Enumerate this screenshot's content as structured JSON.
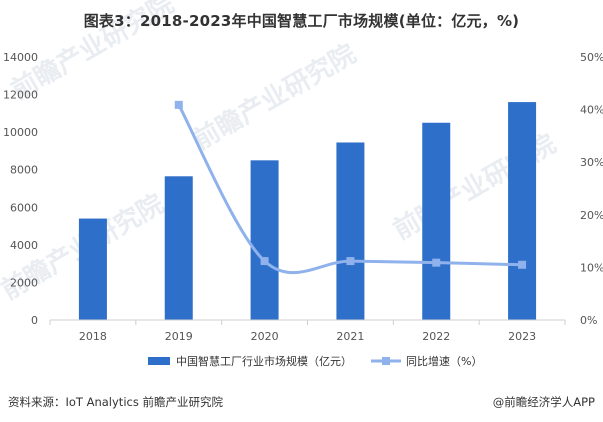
{
  "title": "图表3：2018-2023年中国智慧工厂市场规模(单位：亿元，%)",
  "chart_data": {
    "type": "bar",
    "categories": [
      "2018",
      "2019",
      "2020",
      "2021",
      "2022",
      "2023"
    ],
    "series": [
      {
        "name": "中国智慧工厂行业市场规模（亿元）",
        "kind": "bar",
        "axis": "left",
        "values": [
          5400,
          7650,
          8500,
          9450,
          10500,
          11600
        ]
      },
      {
        "name": "同比增速（%）",
        "kind": "line",
        "axis": "right",
        "smooth": true,
        "points": [
          {
            "category": "2019",
            "value": 40.9
          },
          {
            "category": "2020",
            "value": 11.2
          },
          {
            "category": "2021",
            "value": 11.2
          },
          {
            "category": "2022",
            "value": 10.9
          },
          {
            "category": "2023",
            "value": 10.5
          }
        ]
      }
    ],
    "y_left": {
      "min": 0,
      "max": 14000,
      "ticks": [
        "0",
        "2000",
        "4000",
        "6000",
        "8000",
        "10000",
        "12000",
        "14000"
      ]
    },
    "y_right": {
      "min": 0,
      "max": 50,
      "ticks": [
        "0%",
        "10%",
        "20%",
        "30%",
        "40%",
        "50%"
      ]
    },
    "legend_position": "bottom",
    "grid": false
  },
  "colors": {
    "bar": "#2e6fc9",
    "line": "#8fb2ec",
    "axis": "#cfcfcf"
  },
  "footer": {
    "source": "资料来源：IoT Analytics 前瞻产业研究院",
    "brand": "@前瞻经济学人APP"
  },
  "watermark": "前瞻产业研究院"
}
